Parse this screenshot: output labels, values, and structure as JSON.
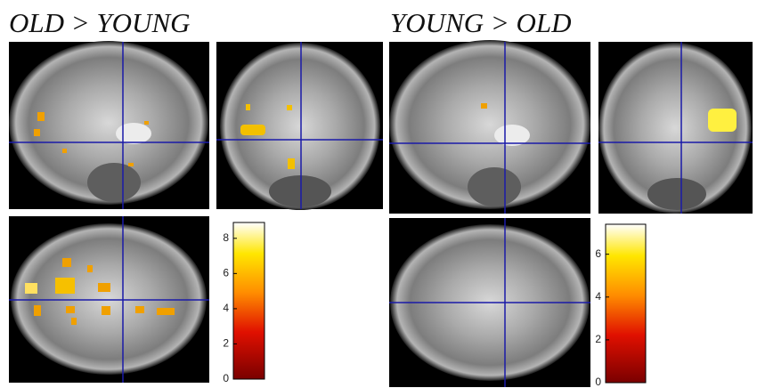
{
  "panels": [
    {
      "title": "OLD > YOUNG",
      "colorbar": {
        "lim": [
          0,
          8.9
        ],
        "ticks": [
          0,
          2,
          4,
          6,
          8
        ]
      }
    },
    {
      "title": "YOUNG > OLD",
      "colorbar": {
        "lim": [
          0,
          7.4
        ],
        "ticks": [
          0,
          2,
          4,
          6
        ]
      }
    }
  ]
}
